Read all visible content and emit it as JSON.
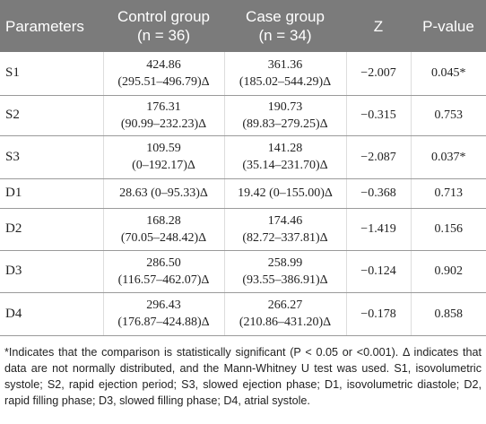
{
  "table": {
    "header": [
      [
        "Parameters"
      ],
      [
        "Control group",
        "(n = 36)"
      ],
      [
        "Case group",
        "(n = 34)"
      ],
      [
        "Z"
      ],
      [
        "P-value"
      ]
    ],
    "rows": [
      [
        [
          "S1"
        ],
        [
          "424.86",
          "(295.51–496.79)Δ"
        ],
        [
          "361.36",
          "(185.02–544.29)Δ"
        ],
        [
          "−2.007"
        ],
        [
          "0.045*"
        ]
      ],
      [
        [
          "S2"
        ],
        [
          "176.31",
          "(90.99–232.23)Δ"
        ],
        [
          "190.73",
          "(89.83–279.25)Δ"
        ],
        [
          "−0.315"
        ],
        [
          "0.753"
        ]
      ],
      [
        [
          "S3"
        ],
        [
          "109.59",
          "(0–192.17)Δ"
        ],
        [
          "141.28",
          "(35.14–231.70)Δ"
        ],
        [
          "−2.087"
        ],
        [
          "0.037*"
        ]
      ],
      [
        [
          "D1"
        ],
        [
          "28.63 (0–95.33)Δ"
        ],
        [
          "19.42 (0–155.00)Δ"
        ],
        [
          "−0.368"
        ],
        [
          "0.713"
        ]
      ],
      [
        [
          "D2"
        ],
        [
          "168.28",
          "(70.05–248.42)Δ"
        ],
        [
          "174.46",
          "(82.72–337.81)Δ"
        ],
        [
          "−1.419"
        ],
        [
          "0.156"
        ]
      ],
      [
        [
          "D3"
        ],
        [
          "286.50",
          "(116.57–462.07)Δ"
        ],
        [
          "258.99",
          "(93.55–386.91)Δ"
        ],
        [
          "−0.124"
        ],
        [
          "0.902"
        ]
      ],
      [
        [
          "D4"
        ],
        [
          "296.43",
          "(176.87–424.88)Δ"
        ],
        [
          "266.27",
          "(210.86–431.20)Δ"
        ],
        [
          "−0.178"
        ],
        [
          "0.858"
        ]
      ]
    ]
  },
  "footnote": "*Indicates that the comparison is statistically significant (P < 0.05 or <0.001). Δ indicates that data are not normally distributed, and the Mann-Whitney U test was used. S1, isovolumetric systole; S2, rapid ejection period; S3, slowed ejection phase; D1, isovolumetric diastole; D2, rapid filling phase; D3, slowed filling phase; D4, atrial systole."
}
